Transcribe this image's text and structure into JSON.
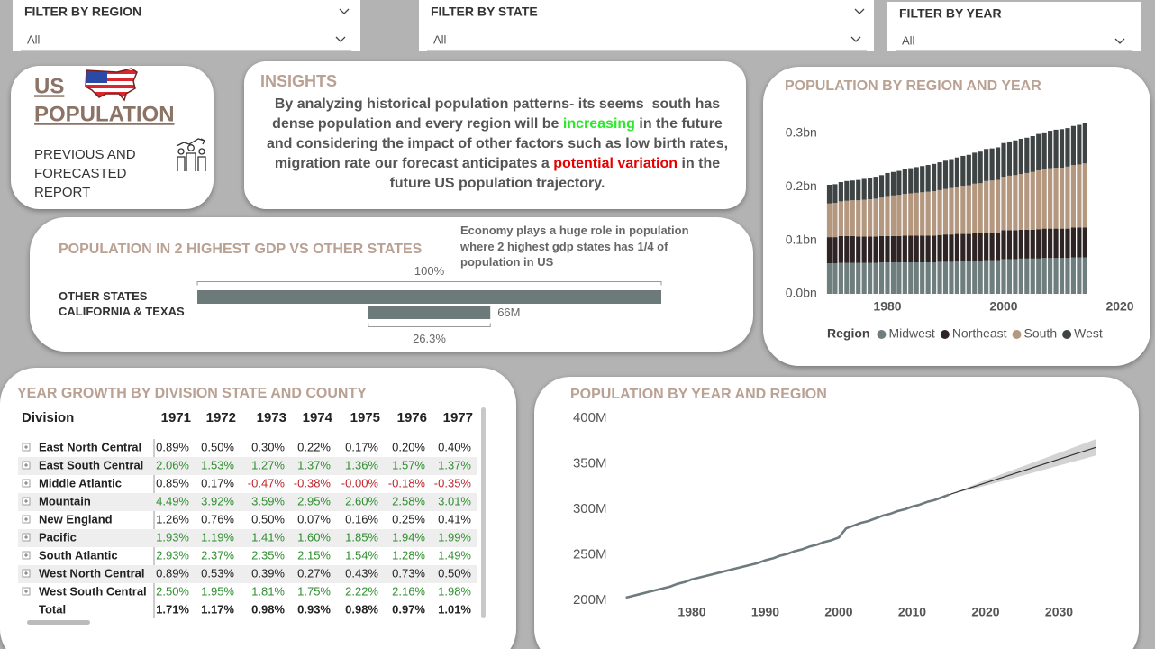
{
  "filters": [
    {
      "label": "FILTER BY REGION",
      "value": "All"
    },
    {
      "label": "FILTER BY STATE",
      "value": "All"
    },
    {
      "label": "FILTER BY YEAR",
      "value": "All"
    }
  ],
  "header": {
    "title": [
      "US",
      "POPULATION"
    ],
    "subtitle": "PREVIOUS AND FORECASTED REPORT"
  },
  "insights": {
    "title": "INSIGHTS",
    "segments": [
      {
        "text": "By analyzing historical population patterns- its seems  south has dense population and every region will be "
      },
      {
        "text": "increasing",
        "color": "#2ee82e"
      },
      {
        "text": " in the future and considering the impact of other factors such as low birth rates, migration rate our forecast anticipates a "
      },
      {
        "text": "potential variation",
        "color": "#e60000"
      },
      {
        "text": " in the future US population trajectory."
      }
    ]
  },
  "chart_data": [
    {
      "type": "stacked_bar",
      "title": "POPULATION BY REGION AND YEAR",
      "x": [
        1970,
        1971,
        1972,
        1973,
        1974,
        1975,
        1976,
        1977,
        1978,
        1979,
        1980,
        1981,
        1982,
        1983,
        1984,
        1985,
        1986,
        1987,
        1988,
        1989,
        1990,
        1991,
        1992,
        1993,
        1994,
        1995,
        1996,
        1997,
        1998,
        1999,
        2000,
        2001,
        2002,
        2003,
        2004,
        2005,
        2006,
        2007,
        2008,
        2009,
        2010,
        2011,
        2012,
        2013,
        2014
      ],
      "series": [
        {
          "name": "Midwest",
          "color": "#6e7d7d",
          "values": [
            0.057,
            0.057,
            0.058,
            0.058,
            0.058,
            0.058,
            0.058,
            0.058,
            0.058,
            0.059,
            0.059,
            0.059,
            0.059,
            0.059,
            0.059,
            0.059,
            0.059,
            0.059,
            0.059,
            0.06,
            0.06,
            0.06,
            0.061,
            0.061,
            0.061,
            0.062,
            0.062,
            0.063,
            0.063,
            0.063,
            0.065,
            0.065,
            0.065,
            0.066,
            0.066,
            0.066,
            0.066,
            0.067,
            0.067,
            0.067,
            0.067,
            0.067,
            0.068,
            0.068,
            0.068
          ]
        },
        {
          "name": "Northeast",
          "color": "#2e2424",
          "values": [
            0.049,
            0.049,
            0.05,
            0.05,
            0.05,
            0.049,
            0.049,
            0.049,
            0.049,
            0.049,
            0.049,
            0.049,
            0.049,
            0.05,
            0.05,
            0.05,
            0.05,
            0.05,
            0.05,
            0.05,
            0.051,
            0.051,
            0.051,
            0.051,
            0.051,
            0.051,
            0.051,
            0.052,
            0.052,
            0.052,
            0.054,
            0.054,
            0.054,
            0.054,
            0.054,
            0.054,
            0.055,
            0.055,
            0.055,
            0.055,
            0.055,
            0.055,
            0.056,
            0.056,
            0.056
          ]
        },
        {
          "name": "South",
          "color": "#b4977f",
          "values": [
            0.063,
            0.064,
            0.065,
            0.066,
            0.067,
            0.068,
            0.069,
            0.07,
            0.071,
            0.072,
            0.075,
            0.076,
            0.077,
            0.078,
            0.079,
            0.08,
            0.081,
            0.082,
            0.083,
            0.084,
            0.085,
            0.087,
            0.088,
            0.09,
            0.091,
            0.093,
            0.094,
            0.096,
            0.097,
            0.098,
            0.1,
            0.102,
            0.103,
            0.104,
            0.106,
            0.108,
            0.11,
            0.111,
            0.113,
            0.114,
            0.114,
            0.116,
            0.117,
            0.118,
            0.12
          ]
        },
        {
          "name": "West",
          "color": "#3e4444",
          "values": [
            0.035,
            0.035,
            0.036,
            0.037,
            0.037,
            0.038,
            0.039,
            0.04,
            0.041,
            0.042,
            0.043,
            0.044,
            0.045,
            0.046,
            0.047,
            0.048,
            0.049,
            0.05,
            0.051,
            0.052,
            0.053,
            0.054,
            0.055,
            0.056,
            0.057,
            0.058,
            0.059,
            0.06,
            0.06,
            0.061,
            0.063,
            0.064,
            0.065,
            0.066,
            0.066,
            0.067,
            0.068,
            0.069,
            0.07,
            0.071,
            0.072,
            0.072,
            0.073,
            0.074,
            0.075
          ]
        }
      ],
      "xlim": [
        1968.5,
        2021.5
      ],
      "xticks": [
        1980,
        2000,
        2020
      ],
      "ylim": [
        0,
        0.325
      ],
      "yticks": [
        {
          "value": 0,
          "label": "0.0bn"
        },
        {
          "value": 0.1,
          "label": "0.1bn"
        },
        {
          "value": 0.2,
          "label": "0.2bn"
        },
        {
          "value": 0.3,
          "label": "0.3bn"
        }
      ],
      "legend_title": "Region",
      "legend": "bottom"
    },
    {
      "type": "funnel",
      "title": "POPULATION IN 2 HIGHEST GDP VS OTHER STATES",
      "note": "Economy plays a huge role in population where 2 highest gdp states has 1/4 of population in US",
      "categories": [
        "OTHER STATES",
        "CALIFORNIA & TEXAS"
      ],
      "values": [
        251,
        66
      ],
      "value_labels": [
        null,
        "66M"
      ],
      "percents": [
        100,
        26.3
      ],
      "percent_labels": [
        "100%",
        "26.3%"
      ],
      "color": "#6d7a7a"
    },
    {
      "type": "line",
      "title": "POPULATION BY YEAR AND REGION",
      "x": [
        1971,
        1972,
        1973,
        1974,
        1975,
        1976,
        1977,
        1978,
        1979,
        1980,
        1981,
        1982,
        1983,
        1984,
        1985,
        1986,
        1987,
        1988,
        1989,
        1990,
        1991,
        1992,
        1993,
        1994,
        1995,
        1996,
        1997,
        1998,
        1999,
        2000,
        2001,
        2002,
        2003,
        2004,
        2005,
        2006,
        2007,
        2008,
        2009,
        2010,
        2011,
        2012,
        2013,
        2014,
        2015
      ],
      "values": [
        203,
        205,
        207,
        209,
        211,
        213,
        215,
        218,
        220,
        223,
        225,
        227,
        229,
        231,
        233,
        235,
        237,
        239,
        241,
        244,
        246,
        249,
        251,
        254,
        256,
        259,
        261,
        264,
        266,
        269,
        279,
        282,
        285,
        287,
        290,
        293,
        295,
        298,
        300,
        303,
        305,
        308,
        310,
        313,
        316
      ],
      "color": "#6d7b7d",
      "forecast": {
        "x": [
          2015,
          2020,
          2025,
          2030,
          2035
        ],
        "values": [
          316,
          329,
          342,
          355,
          368
        ],
        "upper": [
          316,
          332,
          347,
          362,
          377
        ],
        "lower": [
          316,
          326,
          337,
          348,
          359
        ],
        "color": "#333333",
        "band_color": "#d3d3d3"
      },
      "xlim": [
        1970,
        2036
      ],
      "xticks": [
        1980,
        1990,
        2000,
        2010,
        2020,
        2030
      ],
      "ylim": [
        200,
        400
      ],
      "yticks": [
        {
          "value": 200,
          "label": "200M"
        },
        {
          "value": 250,
          "label": "250M"
        },
        {
          "value": 300,
          "label": "300M"
        },
        {
          "value": 350,
          "label": "350M"
        },
        {
          "value": 400,
          "label": "400M"
        }
      ]
    }
  ],
  "table": {
    "title": "YEAR GROWTH BY DIVISION STATE AND COUNTY",
    "columns": [
      "Division",
      "1971",
      "1972",
      "1973",
      "1974",
      "1975",
      "1976",
      "1977"
    ],
    "negative_color": "#c0262d",
    "rows": [
      {
        "name": "East North Central",
        "color": "#222222",
        "values": [
          "0.89%",
          "0.50%",
          "0.30%",
          "0.22%",
          "0.17%",
          "0.20%",
          "0.40%"
        ]
      },
      {
        "name": "East South Central",
        "color": "#2f8f2f",
        "values": [
          "2.06%",
          "1.53%",
          "1.27%",
          "1.37%",
          "1.36%",
          "1.57%",
          "1.37%"
        ]
      },
      {
        "name": "Middle Atlantic",
        "color": "#222222",
        "values": [
          "0.85%",
          "0.17%",
          "-0.47%",
          "-0.38%",
          "-0.00%",
          "-0.18%",
          "-0.35%"
        ]
      },
      {
        "name": "Mountain",
        "color": "#2f8f2f",
        "values": [
          "4.49%",
          "3.92%",
          "3.59%",
          "2.95%",
          "2.60%",
          "2.58%",
          "3.01%"
        ]
      },
      {
        "name": "New England",
        "color": "#222222",
        "values": [
          "1.26%",
          "0.76%",
          "0.50%",
          "0.07%",
          "0.16%",
          "0.25%",
          "0.41%"
        ]
      },
      {
        "name": "Pacific",
        "color": "#2f8f2f",
        "values": [
          "1.93%",
          "1.19%",
          "1.41%",
          "1.60%",
          "1.85%",
          "1.94%",
          "1.99%"
        ]
      },
      {
        "name": "South Atlantic",
        "color": "#2f8f2f",
        "values": [
          "2.93%",
          "2.37%",
          "2.35%",
          "2.15%",
          "1.54%",
          "1.28%",
          "1.49%"
        ]
      },
      {
        "name": "West North Central",
        "color": "#222222",
        "values": [
          "0.89%",
          "0.53%",
          "0.39%",
          "0.27%",
          "0.43%",
          "0.73%",
          "0.50%"
        ]
      },
      {
        "name": "West South Central",
        "color": "#2f8f2f",
        "values": [
          "2.50%",
          "1.95%",
          "1.81%",
          "1.75%",
          "2.22%",
          "2.16%",
          "1.98%"
        ]
      }
    ],
    "total": {
      "name": "Total",
      "color": "#222222",
      "values": [
        "1.71%",
        "1.17%",
        "0.98%",
        "0.93%",
        "0.98%",
        "0.97%",
        "1.01%"
      ]
    }
  }
}
